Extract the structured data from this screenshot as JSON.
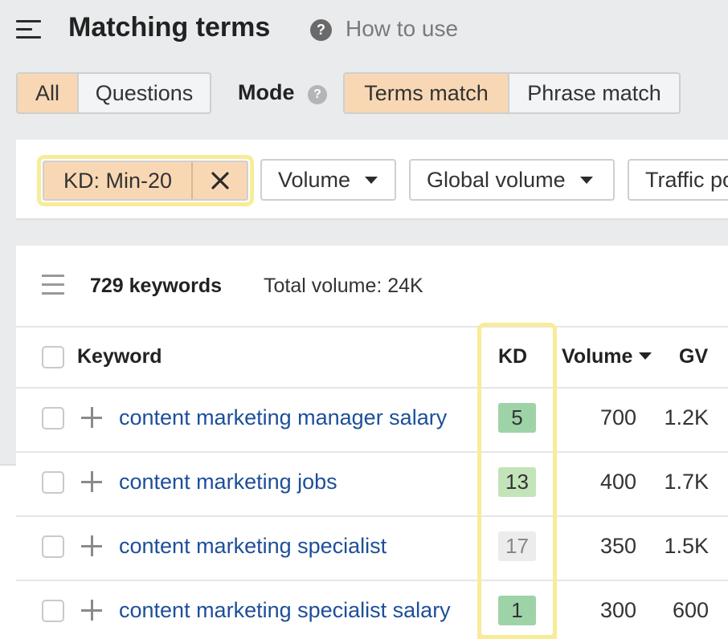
{
  "header": {
    "title": "Matching terms",
    "help_text": "How to use"
  },
  "tabs": [
    {
      "label": "All",
      "active": true
    },
    {
      "label": "Questions",
      "active": false
    }
  ],
  "mode": {
    "label": "Mode",
    "options": [
      {
        "label": "Terms match",
        "active": true
      },
      {
        "label": "Phrase match",
        "active": false
      }
    ]
  },
  "filters": {
    "kd_chip": "KD: Min-20",
    "volume": "Volume",
    "global_volume": "Global volume",
    "traffic_potential": "Traffic po"
  },
  "summary": {
    "count": "729 keywords",
    "total": "Total volume: 24K"
  },
  "table": {
    "columns": {
      "keyword": "Keyword",
      "kd": "KD",
      "volume": "Volume",
      "gv": "GV"
    },
    "rows": [
      {
        "keyword": "content marketing manager salary",
        "kd": "5",
        "volume": "700",
        "gv": "1.2K"
      },
      {
        "keyword": "content marketing jobs",
        "kd": "13",
        "volume": "400",
        "gv": "1.7K"
      },
      {
        "keyword": "content marketing specialist",
        "kd": "17",
        "volume": "350",
        "gv": "1.5K"
      },
      {
        "keyword": "content marketing specialist salary",
        "kd": "1",
        "volume": "300",
        "gv": "600"
      }
    ]
  },
  "colors": {
    "active_segment": "#f8d8b4",
    "highlight": "#f8ec97",
    "link": "#1d4f99",
    "kd_easy": "#9ed3a8",
    "kd_medium": "#c3e4b8",
    "kd_neutral": "#ececec"
  },
  "icons": [
    "menu-icon",
    "help-icon",
    "close-icon",
    "caret-down-icon",
    "columns-icon",
    "plus-icon",
    "checkbox"
  ]
}
